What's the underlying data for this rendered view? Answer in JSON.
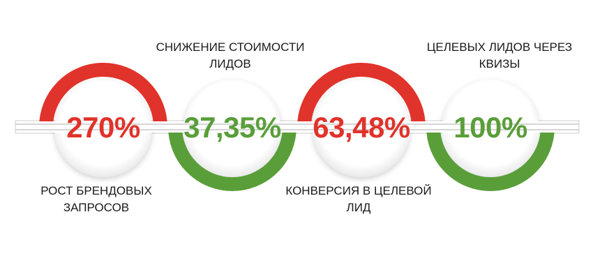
{
  "colors": {
    "red": "#e0332b",
    "green": "#5a9e3a",
    "bar": "#d7d7d7"
  },
  "metrics": [
    {
      "value": "270%",
      "color": "red",
      "arc": "top",
      "caption": [
        "РОСТ БРЕНДОВЫХ",
        "ЗАПРОСОВ"
      ],
      "caption_position": "below"
    },
    {
      "value": "37,35%",
      "color": "green",
      "arc": "bottom",
      "caption": [
        "СНИЖЕНИЕ СТОИМОСТИ",
        "ЛИДОВ"
      ],
      "caption_position": "above"
    },
    {
      "value": "63,48%",
      "color": "red",
      "arc": "top",
      "caption": [
        "КОНВЕРСИЯ В ЦЕЛЕВОЙ",
        "ЛИД"
      ],
      "caption_position": "below"
    },
    {
      "value": "100%",
      "color": "green",
      "arc": "bottom",
      "caption": [
        "ЦЕЛЕВЫХ ЛИДОВ ЧЕРЕЗ",
        "КВИЗЫ"
      ],
      "caption_position": "above"
    }
  ]
}
